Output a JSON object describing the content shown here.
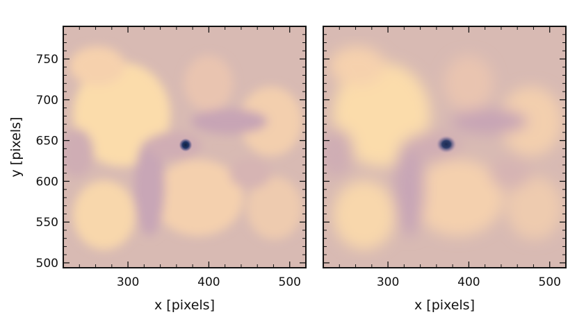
{
  "chart_data": [
    {
      "type": "heatmap",
      "title": "",
      "xlabel": "x [pixels]",
      "ylabel": "y [pixels]",
      "xlim": [
        220,
        520
      ],
      "ylim": [
        494,
        790
      ],
      "xticks": [
        300,
        400,
        500
      ],
      "yticks": [
        500,
        550,
        600,
        650,
        700,
        750
      ],
      "colormap": [
        "#1a2f5c",
        "#7b6f96",
        "#c9a9b7",
        "#d9b9b5",
        "#fde0a8"
      ],
      "feature": {
        "x": 372,
        "y": 646
      }
    },
    {
      "type": "heatmap",
      "title": "",
      "xlabel": "x [pixels]",
      "ylabel": "",
      "xlim": [
        220,
        520
      ],
      "ylim": [
        494,
        790
      ],
      "xticks": [
        300,
        400,
        500
      ],
      "yticks": [
        500,
        550,
        600,
        650,
        700,
        750
      ],
      "colormap": [
        "#1a2f5c",
        "#7b6f96",
        "#c9a9b7",
        "#d9b9b5",
        "#fde0a8"
      ],
      "feature": {
        "x": 374,
        "y": 647
      }
    }
  ]
}
